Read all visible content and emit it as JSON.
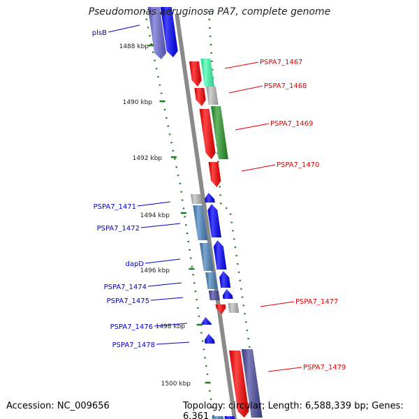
{
  "title": "Pseudomonas aeruginosa PA7, complete genome",
  "footer": {
    "accession": "Accession: NC_009656",
    "topology": "Topology: circular; Length: 6,588,339 bp; Genes: 6,361"
  },
  "colors": {
    "backbone": "#8a8a8a",
    "tick": "#1f7a1f",
    "left_label": "#0000c8",
    "right_label": "#e00000",
    "red": "#ff0000",
    "blue": "#0000ff",
    "steel_blue": "#4a86c0",
    "navy": "#4b4ba0",
    "slate": "#6a6ad6",
    "gray": "#c0c0c0",
    "mint": "#40ffb0",
    "green": "#2a9a2a"
  },
  "scale_labels": [
    {
      "text": "1488 kbp",
      "kbp": 1488
    },
    {
      "text": "1490 kbp",
      "kbp": 1490
    },
    {
      "text": "1492 kbp",
      "kbp": 1492
    },
    {
      "text": "1494 kbp",
      "kbp": 1494
    },
    {
      "text": "1496 kbp",
      "kbp": 1496
    },
    {
      "text": "1498 kbp",
      "kbp": 1498
    },
    {
      "text": "1500 kbp",
      "kbp": 1500
    }
  ],
  "gene_labels_left": [
    {
      "text": "plsB"
    },
    {
      "text": "PSPA7_1471"
    },
    {
      "text": "PSPA7_1472"
    },
    {
      "text": "dapD"
    },
    {
      "text": "PSPA7_1474"
    },
    {
      "text": "PSPA7_1475"
    },
    {
      "text": "PSPA7_1476"
    },
    {
      "text": "PSPA7_1478"
    }
  ],
  "gene_labels_right": [
    {
      "text": "PSPA7_1467"
    },
    {
      "text": "PSPA7_1468"
    },
    {
      "text": "PSPA7_1469"
    },
    {
      "text": "PSPA7_1470"
    },
    {
      "text": "PSPA7_1477"
    },
    {
      "text": "PSPA7_1479"
    }
  ]
}
